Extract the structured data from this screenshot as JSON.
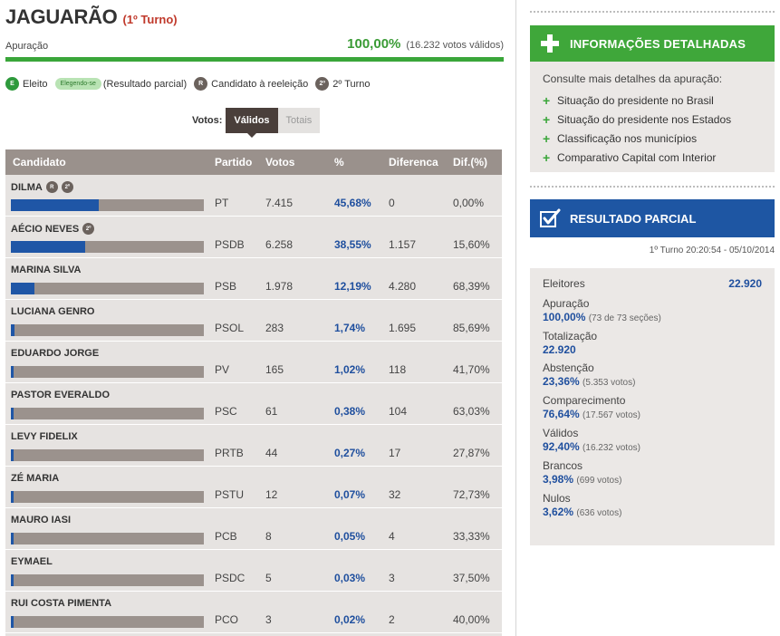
{
  "header": {
    "city": "JAGUARÃO",
    "turn": "(1º Turno)"
  },
  "apuracao": {
    "label": "Apuração",
    "percent": "100,00%",
    "votes": "(16.232 votos válidos)",
    "progress": 1.0
  },
  "legend": {
    "eleito_badge": "E",
    "eleito": "Eleito",
    "elegendo_pill": "Elegendo-se",
    "parcial": "(Resultado parcial)",
    "reeleicao_badge": "R",
    "reeleicao": "Candidato à reeleição",
    "segundo_badge": "2º",
    "segundo": "2º Turno"
  },
  "votes_toggle": {
    "label": "Votos:",
    "validos": "Válidos",
    "totais": "Totais"
  },
  "table": {
    "headers": {
      "candidato": "Candidato",
      "partido": "Partido",
      "votos": "Votos",
      "pct": "%",
      "diferenca": "Diferenca",
      "dif": "Dif.(%)"
    },
    "rows": [
      {
        "name": "DILMA",
        "badges": [
          "R",
          "2º"
        ],
        "party": "PT",
        "votes": "7.415",
        "pct": "45,68%",
        "diff": "0",
        "difpct": "0,00%",
        "share": 0.4568
      },
      {
        "name": "AÉCIO NEVES",
        "badges": [
          "2º"
        ],
        "party": "PSDB",
        "votes": "6.258",
        "pct": "38,55%",
        "diff": "1.157",
        "difpct": "15,60%",
        "share": 0.3855
      },
      {
        "name": "MARINA SILVA",
        "badges": [],
        "party": "PSB",
        "votes": "1.978",
        "pct": "12,19%",
        "diff": "4.280",
        "difpct": "68,39%",
        "share": 0.1219
      },
      {
        "name": "LUCIANA GENRO",
        "badges": [],
        "party": "PSOL",
        "votes": "283",
        "pct": "1,74%",
        "diff": "1.695",
        "difpct": "85,69%",
        "share": 0.0174
      },
      {
        "name": "EDUARDO JORGE",
        "badges": [],
        "party": "PV",
        "votes": "165",
        "pct": "1,02%",
        "diff": "118",
        "difpct": "41,70%",
        "share": 0.0102
      },
      {
        "name": "PASTOR EVERALDO",
        "badges": [],
        "party": "PSC",
        "votes": "61",
        "pct": "0,38%",
        "diff": "104",
        "difpct": "63,03%",
        "share": 0.0038
      },
      {
        "name": "LEVY FIDELIX",
        "badges": [],
        "party": "PRTB",
        "votes": "44",
        "pct": "0,27%",
        "diff": "17",
        "difpct": "27,87%",
        "share": 0.0027
      },
      {
        "name": "ZÉ MARIA",
        "badges": [],
        "party": "PSTU",
        "votes": "12",
        "pct": "0,07%",
        "diff": "32",
        "difpct": "72,73%",
        "share": 0.0007
      },
      {
        "name": "MAURO IASI",
        "badges": [],
        "party": "PCB",
        "votes": "8",
        "pct": "0,05%",
        "diff": "4",
        "difpct": "33,33%",
        "share": 0.0005
      },
      {
        "name": "EYMAEL",
        "badges": [],
        "party": "PSDC",
        "votes": "5",
        "pct": "0,03%",
        "diff": "3",
        "difpct": "37,50%",
        "share": 0.0003
      },
      {
        "name": "RUI COSTA PIMENTA",
        "badges": [],
        "party": "PCO",
        "votes": "3",
        "pct": "0,02%",
        "diff": "2",
        "difpct": "40,00%",
        "share": 0.0002
      }
    ]
  },
  "info": {
    "title": "INFORMAÇÕES DETALHADAS",
    "intro": "Consulte mais detalhes da apuração:",
    "links": [
      "Situação do presidente no Brasil",
      "Situação do presidente nos Estados",
      "Classificação nos municípios",
      "Comparativo Capital com Interior"
    ]
  },
  "resultado": {
    "title": "RESULTADO PARCIAL",
    "timestamp": "1º Turno 20:20:54 - 05/10/2014",
    "eleitores_label": "Eleitores",
    "eleitores_value": "22.920",
    "stats": [
      {
        "label": "Apuração",
        "value": "100,00%",
        "sub": "(73 de 73 seções)"
      },
      {
        "label": "Totalização",
        "value": "22.920",
        "sub": ""
      },
      {
        "label": "Abstenção",
        "value": "23,36%",
        "sub": "(5.353 votos)"
      },
      {
        "label": "Comparecimento",
        "value": "76,64%",
        "sub": "(17.567 votos)"
      },
      {
        "label": "Válidos",
        "value": "92,40%",
        "sub": "(16.232 votos)"
      },
      {
        "label": "Brancos",
        "value": "3,98%",
        "sub": "(699 votos)"
      },
      {
        "label": "Nulos",
        "value": "3,62%",
        "sub": "(636 votos)"
      }
    ]
  },
  "colors": {
    "green": "#3aa63a",
    "blue": "#1e56a3",
    "bar_bg": "#9b928d",
    "header_bg": "#9a918c"
  }
}
